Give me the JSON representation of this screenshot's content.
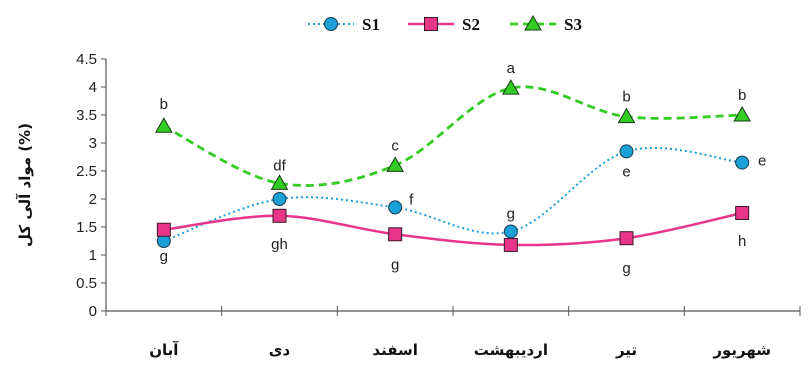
{
  "chart_data": {
    "type": "line",
    "categories": [
      "آبان",
      "دی",
      "اسفند",
      "اردیبهشت",
      "تیر",
      "شهریور"
    ],
    "ylabel": "مواد آلی کل (%)",
    "ylim": [
      0,
      4.5
    ],
    "yticks": [
      "0",
      "0.5",
      "1",
      "1.5",
      "2",
      "2.5",
      "3",
      "3.5",
      "4",
      "4.5"
    ],
    "legend_position": "top",
    "grid": false,
    "series": [
      {
        "name": "S1",
        "marker": "circle",
        "line_style": "dotted",
        "color": "#1a9fd6",
        "values": [
          1.25,
          2.0,
          1.85,
          1.42,
          2.85,
          2.65
        ],
        "letters": [
          "",
          "",
          "f",
          "g",
          "e",
          "e"
        ]
      },
      {
        "name": "S2",
        "marker": "square",
        "line_style": "solid",
        "color": "#e8358a",
        "values": [
          1.45,
          1.7,
          1.37,
          1.18,
          1.3,
          1.75
        ],
        "letters": [
          "g",
          "gh",
          "g",
          "",
          "g",
          "h"
        ]
      },
      {
        "name": "S3",
        "marker": "triangle",
        "line_style": "dashed",
        "color": "#33cc22",
        "values": [
          3.3,
          2.28,
          2.6,
          3.98,
          3.47,
          3.5
        ],
        "letters": [
          "b",
          "df",
          "c",
          "a",
          "b",
          "b"
        ]
      }
    ]
  }
}
